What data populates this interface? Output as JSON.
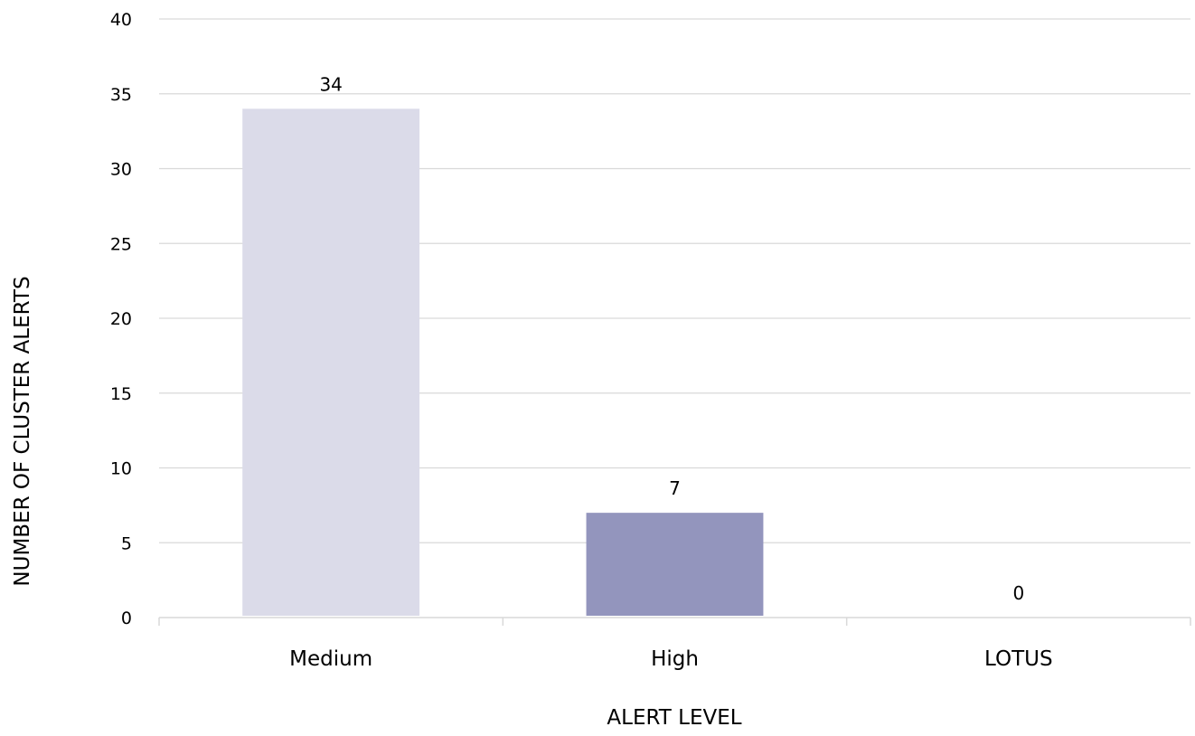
{
  "chart_data": {
    "type": "bar",
    "categories": [
      "Medium",
      "High",
      "LOTUS"
    ],
    "values": [
      34,
      7,
      0
    ],
    "bar_colors": [
      "#dbdbe9",
      "#9395bd",
      "#6e70a4"
    ],
    "data_labels": [
      "34",
      "7",
      "0"
    ],
    "title": "",
    "xlabel": "ALERT LEVEL",
    "ylabel": "NUMBER OF CLUSTER ALERTS",
    "ylim": [
      0,
      40
    ],
    "yticks": [
      0,
      5,
      10,
      15,
      20,
      25,
      30,
      35,
      40
    ],
    "grid": true,
    "gridline_color": "#d9d9d9",
    "legend": false
  }
}
